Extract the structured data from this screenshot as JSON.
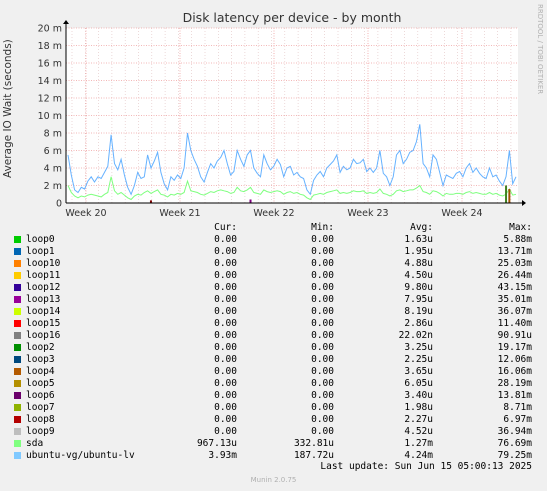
{
  "chart_data": {
    "type": "line",
    "title": "Disk latency per device - by month",
    "ylabel": "Average IO Wait (seconds)",
    "xlabel": "",
    "y_unit": "seconds",
    "ylim": [
      0,
      0.02
    ],
    "y_ticks": [
      {
        "value": 0,
        "label": "0"
      },
      {
        "value": 0.002,
        "label": "2 m"
      },
      {
        "value": 0.004,
        "label": "4 m"
      },
      {
        "value": 0.006,
        "label": "6 m"
      },
      {
        "value": 0.008,
        "label": "8 m"
      },
      {
        "value": 0.01,
        "label": "10 m"
      },
      {
        "value": 0.012,
        "label": "12 m"
      },
      {
        "value": 0.014,
        "label": "14 m"
      },
      {
        "value": 0.016,
        "label": "16 m"
      },
      {
        "value": 0.018,
        "label": "18 m"
      },
      {
        "value": 0.02,
        "label": "20 m"
      }
    ],
    "x_ticks": [
      "Week 20",
      "Week 21",
      "Week 22",
      "Week 23",
      "Week 24"
    ],
    "grid": true,
    "legend_position": "bottom",
    "series": [
      {
        "name": "ubuntu-vg/ubuntu-lv",
        "color": "#66b2ff",
        "values": [
          0.0055,
          0.0032,
          0.0015,
          0.0012,
          0.0018,
          0.0016,
          0.0025,
          0.003,
          0.0024,
          0.003,
          0.0028,
          0.0035,
          0.0042,
          0.0078,
          0.0045,
          0.0038,
          0.005,
          0.0032,
          0.0018,
          0.001,
          0.002,
          0.0035,
          0.0028,
          0.003,
          0.0055,
          0.004,
          0.0048,
          0.0058,
          0.0035,
          0.0022,
          0.0015,
          0.003,
          0.0026,
          0.0032,
          0.0028,
          0.004,
          0.008,
          0.006,
          0.005,
          0.0042,
          0.003,
          0.0024,
          0.0035,
          0.0045,
          0.004,
          0.0048,
          0.0052,
          0.006,
          0.0045,
          0.0032,
          0.0036,
          0.006,
          0.005,
          0.0042,
          0.0055,
          0.006,
          0.004,
          0.0034,
          0.003,
          0.0055,
          0.0045,
          0.0038,
          0.0042,
          0.005,
          0.0044,
          0.003,
          0.004,
          0.0042,
          0.0032,
          0.0035,
          0.003,
          0.0028,
          0.0015,
          0.001,
          0.0026,
          0.0032,
          0.0036,
          0.003,
          0.004,
          0.0044,
          0.0048,
          0.0055,
          0.0035,
          0.0042,
          0.0038,
          0.004,
          0.005,
          0.0045,
          0.0046,
          0.005,
          0.0036,
          0.004,
          0.0035,
          0.004,
          0.006,
          0.0034,
          0.003,
          0.002,
          0.003,
          0.0055,
          0.006,
          0.0045,
          0.005,
          0.0058,
          0.006,
          0.007,
          0.009,
          0.0045,
          0.004,
          0.003,
          0.0055,
          0.005,
          0.0035,
          0.002,
          0.0032,
          0.003,
          0.0028,
          0.0034,
          0.0036,
          0.003,
          0.004,
          0.0045,
          0.0035,
          0.004,
          0.0034,
          0.003,
          0.0028,
          0.004,
          0.003,
          0.0032,
          0.0025,
          0.002,
          0.003,
          0.006,
          0.0022,
          0.003
        ]
      },
      {
        "name": "sda",
        "color": "#7fff7f",
        "values": [
          0.002,
          0.0012,
          0.0008,
          0.0006,
          0.0008,
          0.0007,
          0.0009,
          0.001,
          0.0009,
          0.0008,
          0.0007,
          0.001,
          0.0012,
          0.003,
          0.0014,
          0.001,
          0.0012,
          0.0009,
          0.0006,
          0.0004,
          0.0008,
          0.001,
          0.0009,
          0.0012,
          0.0014,
          0.0011,
          0.0013,
          0.0015,
          0.001,
          0.0009,
          0.0007,
          0.001,
          0.0009,
          0.0011,
          0.001,
          0.0012,
          0.0025,
          0.0014,
          0.0013,
          0.0012,
          0.001,
          0.0009,
          0.0011,
          0.0013,
          0.0012,
          0.0014,
          0.0015,
          0.0014,
          0.0013,
          0.0011,
          0.0012,
          0.0018,
          0.0014,
          0.0013,
          0.0015,
          0.0018,
          0.0012,
          0.0011,
          0.001,
          0.0015,
          0.0013,
          0.0012,
          0.0013,
          0.0014,
          0.0013,
          0.001,
          0.0012,
          0.0013,
          0.0011,
          0.0012,
          0.001,
          0.0009,
          0.0006,
          0.0004,
          0.0009,
          0.001,
          0.0011,
          0.001,
          0.0012,
          0.0013,
          0.0014,
          0.0015,
          0.0011,
          0.0012,
          0.0011,
          0.0012,
          0.0014,
          0.0013,
          0.0013,
          0.0014,
          0.0011,
          0.0012,
          0.0011,
          0.0012,
          0.0016,
          0.0011,
          0.001,
          0.0008,
          0.001,
          0.0014,
          0.0015,
          0.0013,
          0.0014,
          0.0015,
          0.0015,
          0.0017,
          0.002,
          0.0013,
          0.0012,
          0.001,
          0.0014,
          0.0013,
          0.0011,
          0.0008,
          0.0011,
          0.001,
          0.001,
          0.0011,
          0.0011,
          0.001,
          0.0012,
          0.0013,
          0.0011,
          0.0012,
          0.0011,
          0.001,
          0.001,
          0.0012,
          0.001,
          0.0011,
          0.0009,
          0.0008,
          0.001,
          0.0016,
          0.0009,
          0.001
        ]
      }
    ],
    "spikes": [
      {
        "name": "loop16",
        "color": "#408020",
        "x_index": 132,
        "value": 0.002
      },
      {
        "name": "loop4",
        "color": "#a05000",
        "x_index": 133,
        "value": 0.0016
      },
      {
        "name": "loop13",
        "color": "#7f007f",
        "x_index": 55,
        "value": 0.0004
      },
      {
        "name": "loop8",
        "color": "#800000",
        "x_index": 25,
        "value": 0.0003
      }
    ]
  },
  "legend": {
    "headers": {
      "cur": "Cur:",
      "min": "Min:",
      "avg": "Avg:",
      "max": "Max:"
    },
    "rows": [
      {
        "name": "loop0",
        "color": "#00cc00",
        "cur": "0.00",
        "min": "0.00",
        "avg": "1.63u",
        "max": "5.88m"
      },
      {
        "name": "loop1",
        "color": "#0066b3",
        "cur": "0.00",
        "min": "0.00",
        "avg": "1.95u",
        "max": "13.71m"
      },
      {
        "name": "loop10",
        "color": "#ff8000",
        "cur": "0.00",
        "min": "0.00",
        "avg": "4.88u",
        "max": "25.03m"
      },
      {
        "name": "loop11",
        "color": "#ffcc00",
        "cur": "0.00",
        "min": "0.00",
        "avg": "4.50u",
        "max": "26.44m"
      },
      {
        "name": "loop12",
        "color": "#330099",
        "cur": "0.00",
        "min": "0.00",
        "avg": "9.80u",
        "max": "43.15m"
      },
      {
        "name": "loop13",
        "color": "#990099",
        "cur": "0.00",
        "min": "0.00",
        "avg": "7.95u",
        "max": "35.01m"
      },
      {
        "name": "loop14",
        "color": "#ccff00",
        "cur": "0.00",
        "min": "0.00",
        "avg": "8.19u",
        "max": "36.07m"
      },
      {
        "name": "loop15",
        "color": "#ff0000",
        "cur": "0.00",
        "min": "0.00",
        "avg": "2.86u",
        "max": "11.40m"
      },
      {
        "name": "loop16",
        "color": "#808080",
        "cur": "0.00",
        "min": "0.00",
        "avg": "22.02n",
        "max": "90.91u"
      },
      {
        "name": "loop2",
        "color": "#008f00",
        "cur": "0.00",
        "min": "0.00",
        "avg": "3.25u",
        "max": "19.17m"
      },
      {
        "name": "loop3",
        "color": "#00487d",
        "cur": "0.00",
        "min": "0.00",
        "avg": "2.25u",
        "max": "12.06m"
      },
      {
        "name": "loop4",
        "color": "#b35a00",
        "cur": "0.00",
        "min": "0.00",
        "avg": "3.65u",
        "max": "16.06m"
      },
      {
        "name": "loop5",
        "color": "#b38f00",
        "cur": "0.00",
        "min": "0.00",
        "avg": "6.05u",
        "max": "28.19m"
      },
      {
        "name": "loop6",
        "color": "#6b006b",
        "cur": "0.00",
        "min": "0.00",
        "avg": "3.40u",
        "max": "13.81m"
      },
      {
        "name": "loop7",
        "color": "#8fb300",
        "cur": "0.00",
        "min": "0.00",
        "avg": "1.98u",
        "max": "8.71m"
      },
      {
        "name": "loop8",
        "color": "#b30000",
        "cur": "0.00",
        "min": "0.00",
        "avg": "2.27u",
        "max": "6.97m"
      },
      {
        "name": "loop9",
        "color": "#bebebe",
        "cur": "0.00",
        "min": "0.00",
        "avg": "4.52u",
        "max": "36.94m"
      },
      {
        "name": "sda",
        "color": "#80ff80",
        "cur": "967.13u",
        "min": "332.81u",
        "avg": "1.27m",
        "max": "76.69m"
      },
      {
        "name": "ubuntu-vg/ubuntu-lv",
        "color": "#80c9ff",
        "cur": "3.93m",
        "min": "187.72u",
        "avg": "4.24m",
        "max": "79.25m"
      }
    ]
  },
  "last_update": "Last update: Sun Jun 15 05:00:13 2025",
  "footer": "Munin 2.0.75",
  "watermark": "RRDTOOL / TOBI OETIKER"
}
